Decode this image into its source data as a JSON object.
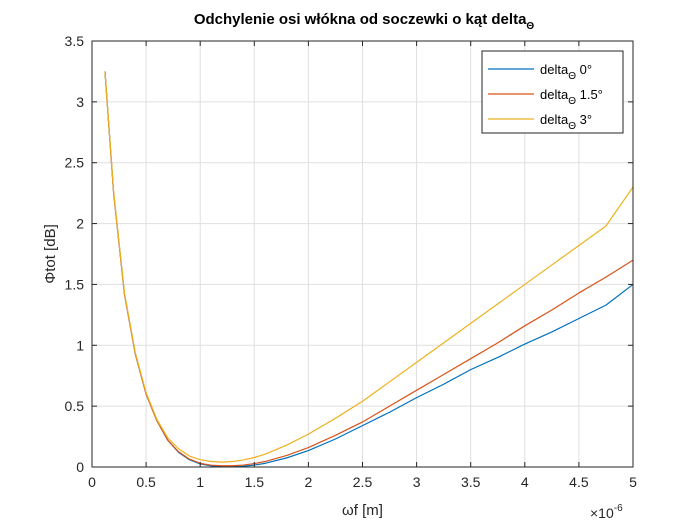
{
  "chart_data": {
    "type": "line",
    "title": "Odchylenie osi włókna od soczewki o kąt delta",
    "title_subscript": "Θ",
    "xlabel": "ωf [m]",
    "ylabel": "Φtot [dB]",
    "x_exponent_label": "×10",
    "x_exponent": "-6",
    "xlim": [
      0,
      5
    ],
    "ylim": [
      0,
      3.5
    ],
    "x_ticks": [
      "0",
      "0.5",
      "1",
      "1.5",
      "2",
      "2.5",
      "3",
      "3.5",
      "4",
      "4.5",
      "5"
    ],
    "y_ticks": [
      "0",
      "0.5",
      "1",
      "1.5",
      "2",
      "2.5",
      "3",
      "3.5"
    ],
    "grid": true,
    "legend_position": "top-right",
    "x": [
      0.12,
      0.2,
      0.3,
      0.4,
      0.5,
      0.6,
      0.7,
      0.8,
      0.9,
      1.0,
      1.1,
      1.2,
      1.3,
      1.4,
      1.5,
      1.6,
      1.8,
      2.0,
      2.25,
      2.5,
      2.75,
      3.0,
      3.25,
      3.5,
      3.75,
      4.0,
      4.25,
      4.5,
      4.75,
      5.0
    ],
    "series": [
      {
        "name_main": "delta",
        "name_sub": "Θ",
        "name_rest": " 0°",
        "color": "#0072BD",
        "values": [
          3.25,
          2.25,
          1.42,
          0.93,
          0.6,
          0.38,
          0.22,
          0.12,
          0.06,
          0.025,
          0.01,
          0.003,
          0.002,
          0.006,
          0.016,
          0.03,
          0.075,
          0.135,
          0.23,
          0.34,
          0.45,
          0.57,
          0.68,
          0.8,
          0.9,
          1.01,
          1.11,
          1.22,
          1.33,
          1.5
        ]
      },
      {
        "name_main": "delta",
        "name_sub": "Θ",
        "name_rest": " 1.5°",
        "color": "#D95319",
        "values": [
          3.25,
          2.25,
          1.42,
          0.93,
          0.6,
          0.38,
          0.22,
          0.125,
          0.065,
          0.03,
          0.015,
          0.01,
          0.01,
          0.016,
          0.028,
          0.045,
          0.095,
          0.16,
          0.26,
          0.37,
          0.5,
          0.63,
          0.76,
          0.89,
          1.02,
          1.16,
          1.29,
          1.43,
          1.56,
          1.7
        ]
      },
      {
        "name_main": "delta",
        "name_sub": "Θ",
        "name_rest": " 3°",
        "color": "#EDB120",
        "values": [
          3.25,
          2.26,
          1.43,
          0.94,
          0.61,
          0.39,
          0.24,
          0.15,
          0.09,
          0.06,
          0.045,
          0.04,
          0.045,
          0.058,
          0.078,
          0.105,
          0.18,
          0.27,
          0.4,
          0.54,
          0.7,
          0.86,
          1.02,
          1.18,
          1.34,
          1.5,
          1.66,
          1.82,
          1.98,
          2.3
        ]
      }
    ]
  }
}
